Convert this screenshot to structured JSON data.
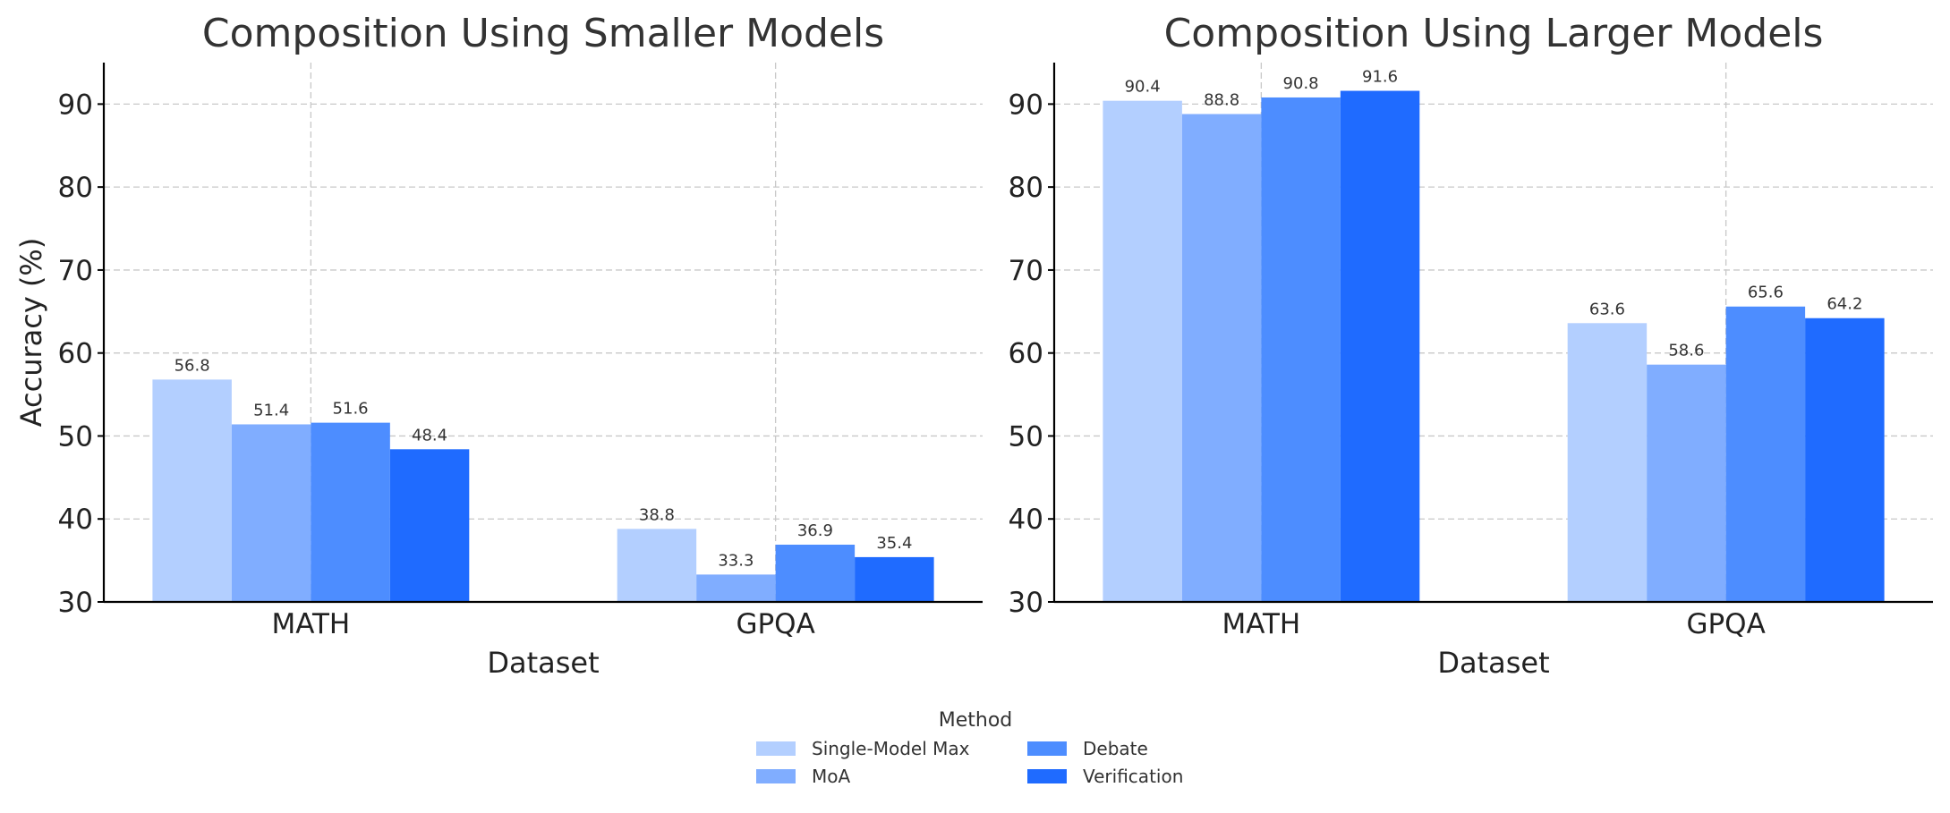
{
  "chart_data": [
    {
      "type": "bar",
      "title": "Composition Using Smaller Models",
      "xlabel": "Dataset",
      "ylabel": "Accuracy (%)",
      "ylim": [
        30,
        95
      ],
      "yticks": [
        30,
        40,
        50,
        60,
        70,
        80,
        90
      ],
      "grid": true,
      "categories": [
        "MATH",
        "GPQA"
      ],
      "series": [
        {
          "name": "Single-Model Max",
          "values": [
            56.8,
            38.8
          ]
        },
        {
          "name": "MoA",
          "values": [
            51.4,
            33.3
          ]
        },
        {
          "name": "Debate",
          "values": [
            51.6,
            36.9
          ]
        },
        {
          "name": "Verification",
          "values": [
            48.4,
            35.4
          ]
        }
      ]
    },
    {
      "type": "bar",
      "title": "Composition Using Larger Models",
      "xlabel": "Dataset",
      "ylabel": "",
      "ylim": [
        30,
        95
      ],
      "yticks": [
        30,
        40,
        50,
        60,
        70,
        80,
        90
      ],
      "grid": true,
      "categories": [
        "MATH",
        "GPQA"
      ],
      "series": [
        {
          "name": "Single-Model Max",
          "values": [
            90.4,
            63.6
          ]
        },
        {
          "name": "MoA",
          "values": [
            88.8,
            58.6
          ]
        },
        {
          "name": "Debate",
          "values": [
            90.8,
            65.6
          ]
        },
        {
          "name": "Verification",
          "values": [
            91.6,
            64.2
          ]
        }
      ]
    }
  ],
  "legend": {
    "title": "Method",
    "placement": "bottom-center",
    "entries": [
      "Single-Model Max",
      "MoA",
      "Debate",
      "Verification"
    ]
  },
  "colors": {
    "series": [
      "#b3cfff",
      "#80adff",
      "#4d8dff",
      "#1f6bff"
    ],
    "grid": "#c8c8c8",
    "axis": "#000000",
    "text": "#333333"
  }
}
